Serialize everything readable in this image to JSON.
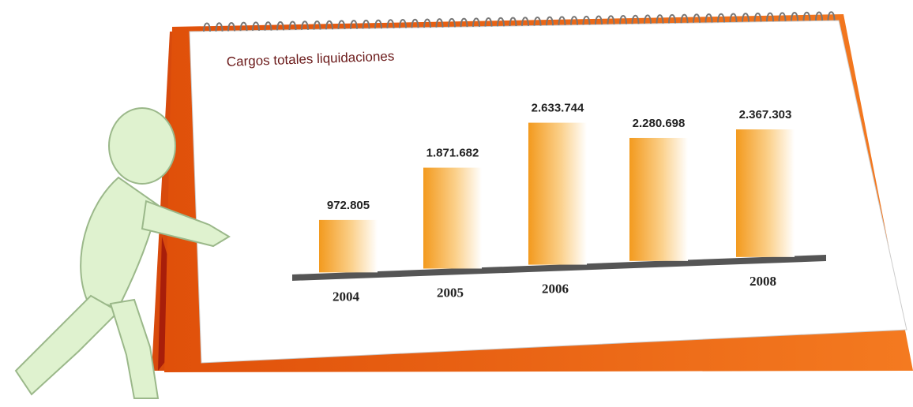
{
  "chart_data": {
    "type": "bar",
    "title": "Cargos totales liquidaciones",
    "categories": [
      "2004",
      "2005",
      "2006",
      null,
      "2008"
    ],
    "values": [
      972805,
      1871682,
      2633744,
      2280698,
      2367303
    ],
    "value_labels": [
      "972.805",
      "1.871.682",
      "2.633.744",
      "2.280.698",
      "2.367.303"
    ],
    "color": "#f5a623"
  }
}
